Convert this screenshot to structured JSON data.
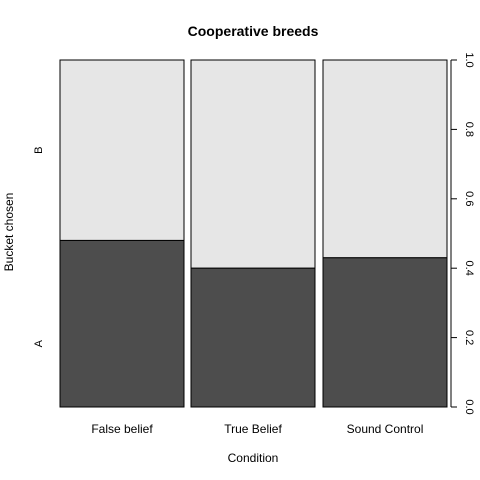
{
  "chart_data": {
    "type": "spineplot",
    "title": "Cooperative breeds",
    "xlabel": "Condition",
    "ylabel": "Bucket chosen",
    "categories": [
      "False belief",
      "True Belief",
      "Sound Control"
    ],
    "y_categories": [
      "A",
      "B"
    ],
    "series": [
      {
        "name": "A",
        "values": [
          0.48,
          0.4,
          0.43
        ]
      },
      {
        "name": "B",
        "values": [
          0.52,
          0.6,
          0.57
        ]
      }
    ],
    "right_axis": {
      "ylim": [
        0,
        1
      ],
      "ticks": [
        "0.0",
        "0.2",
        "0.4",
        "0.6",
        "0.8",
        "1.0"
      ]
    },
    "colors": {
      "A": "#4d4d4d",
      "B": "#e6e6e6",
      "border": "#000000"
    }
  }
}
